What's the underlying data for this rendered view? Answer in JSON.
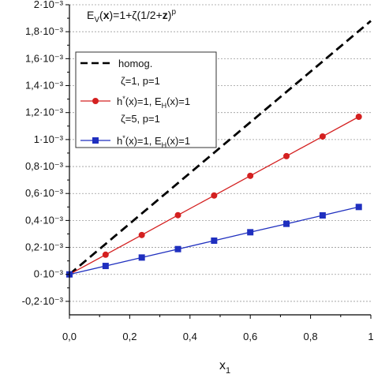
{
  "chart_data": {
    "type": "line",
    "xlabel": "x",
    "xlabel_sub": "1",
    "annotation": "E_V(x)=1+ζ(1/2+z)^p",
    "xlim": [
      0.0,
      1.0
    ],
    "ylim": [
      -0.0003,
      0.002
    ],
    "grid": true,
    "legend_position": "upper-left",
    "x_ticks": [
      {
        "value": 0.0,
        "label": "0,0"
      },
      {
        "value": 0.2,
        "label": "0,2"
      },
      {
        "value": 0.4,
        "label": "0,4"
      },
      {
        "value": 0.6,
        "label": "0,6"
      },
      {
        "value": 0.8,
        "label": "0,8"
      },
      {
        "value": 1.0,
        "label": "1"
      }
    ],
    "y_ticks": [
      {
        "value": -0.0002,
        "label": "-0,2·10⁻³"
      },
      {
        "value": 0.0,
        "label": "0·10⁻³"
      },
      {
        "value": 0.0002,
        "label": "0,2·10⁻³"
      },
      {
        "value": 0.0004,
        "label": "0,4·10⁻³"
      },
      {
        "value": 0.0006,
        "label": "0,6·10⁻³"
      },
      {
        "value": 0.0008,
        "label": "0,8·10⁻³"
      },
      {
        "value": 0.001,
        "label": "1·10⁻³"
      },
      {
        "value": 0.0012,
        "label": "1,2·10⁻³"
      },
      {
        "value": 0.0014,
        "label": "1,4·10⁻³"
      },
      {
        "value": 0.0016,
        "label": "1,6·10⁻³"
      },
      {
        "value": 0.0018,
        "label": "1,8·10⁻³"
      },
      {
        "value": 0.002,
        "label": "2·10⁻³"
      }
    ],
    "series": [
      {
        "name": "homog.",
        "style": "dashed",
        "color": "#000000",
        "marker": "none",
        "x": [
          0.0,
          1.0
        ],
        "y": [
          0.0,
          0.00188
        ]
      },
      {
        "name": "h*(x)=1, E_H(x)=1",
        "group_label": "ζ=1, p=1",
        "style": "solid",
        "color": "#d42020",
        "marker": "circle",
        "x": [
          0.0,
          0.12,
          0.24,
          0.36,
          0.48,
          0.6,
          0.72,
          0.84,
          0.96
        ],
        "y": [
          0.0,
          0.000146,
          0.000292,
          0.000439,
          0.000585,
          0.000731,
          0.000877,
          0.001023,
          0.001169
        ]
      },
      {
        "name": "h*(x)=1, E_H(x)=1",
        "group_label": "ζ=5, p=1",
        "style": "solid",
        "color": "#1f2fbf",
        "marker": "square",
        "x": [
          0.0,
          0.12,
          0.24,
          0.36,
          0.48,
          0.6,
          0.72,
          0.84,
          0.96
        ],
        "y": [
          0.0,
          6.25e-05,
          0.000125,
          0.0001875,
          0.00025,
          0.0003125,
          0.000375,
          0.0004375,
          0.0005
        ]
      }
    ]
  }
}
